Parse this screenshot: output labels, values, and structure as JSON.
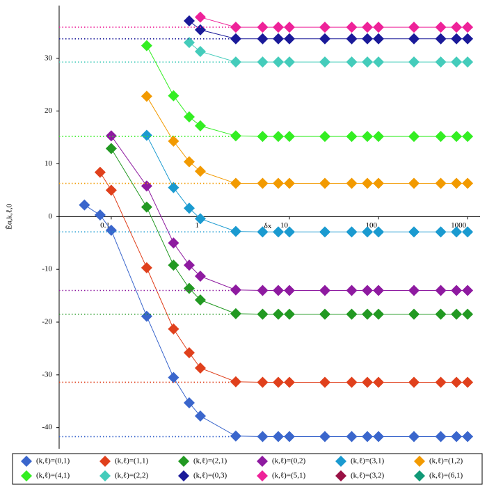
{
  "chart_data": {
    "type": "line",
    "x_label": "δx",
    "y_label": "Ẽα,k,ℓ,0",
    "log_x": true,
    "x": [
      0.05,
      0.075,
      0.1,
      0.25,
      0.5,
      0.75,
      1,
      2.5,
      5,
      7.5,
      10,
      25,
      50,
      75,
      100,
      250,
      500,
      750,
      1000
    ],
    "xlim": [
      0.026,
      1380
    ],
    "xticks": [
      0.1,
      1,
      10,
      100,
      1000
    ],
    "ylim": [
      -44,
      40
    ],
    "yticks": [
      -40,
      -30,
      -20,
      -10,
      0,
      10,
      20,
      30
    ],
    "series": [
      {
        "name": "(k,ℓ)=(0,1)",
        "color": "#3a66cc",
        "values": [
          2.2,
          0.3,
          -2.6,
          -18.9,
          -30.5,
          -35.3,
          -37.8,
          -41.6,
          -41.7,
          -41.7,
          -41.7,
          -41.7,
          -41.7,
          -41.7,
          -41.7,
          -41.7,
          -41.7,
          -41.7,
          -41.7
        ]
      },
      {
        "name": "(k,ℓ)=(1,1)",
        "color": "#e0401c",
        "values": [
          null,
          8.4,
          5.0,
          -9.7,
          -21.3,
          -25.8,
          -28.7,
          -31.3,
          -31.4,
          -31.4,
          -31.4,
          -31.4,
          -31.4,
          -31.4,
          -31.4,
          -31.4,
          -31.4,
          -31.4,
          -31.4
        ]
      },
      {
        "name": "(k,ℓ)=(2,1)",
        "color": "#229922",
        "values": [
          null,
          null,
          12.9,
          1.8,
          -9.2,
          -13.6,
          -15.8,
          -18.4,
          -18.5,
          -18.5,
          -18.5,
          -18.5,
          -18.5,
          -18.5,
          -18.5,
          -18.5,
          -18.5,
          -18.5,
          -18.5
        ]
      },
      {
        "name": "(k,ℓ)=(0,2)",
        "color": "#8e1aa0",
        "values": [
          null,
          null,
          15.3,
          5.8,
          -5.0,
          -9.2,
          -11.3,
          -13.9,
          -14.0,
          -14.0,
          -14.0,
          -14.0,
          -14.0,
          -14.0,
          -14.0,
          -14.0,
          -14.0,
          -14.0,
          -14.0
        ]
      },
      {
        "name": "(k,ℓ)=(3,1)",
        "color": "#1a9ad0",
        "values": [
          null,
          null,
          null,
          15.4,
          5.5,
          1.6,
          -0.4,
          -2.8,
          -2.9,
          -2.9,
          -2.9,
          -2.9,
          -2.9,
          -2.9,
          -2.9,
          -2.9,
          -2.9,
          -2.9,
          -2.9
        ]
      },
      {
        "name": "(k,ℓ)=(1,2)",
        "color": "#f29a00",
        "values": [
          null,
          null,
          null,
          22.8,
          14.3,
          10.4,
          8.6,
          6.3,
          6.3,
          6.3,
          6.3,
          6.3,
          6.3,
          6.3,
          6.3,
          6.3,
          6.3,
          6.3,
          6.3
        ]
      },
      {
        "name": "(k,ℓ)=(4,1)",
        "color": "#33ee22",
        "values": [
          null,
          null,
          null,
          32.4,
          22.9,
          18.9,
          17.2,
          15.3,
          15.2,
          15.2,
          15.2,
          15.2,
          15.2,
          15.2,
          15.2,
          15.2,
          15.2,
          15.2,
          15.2
        ]
      },
      {
        "name": "(k,ℓ)=(2,2)",
        "color": "#44ccbb",
        "values": [
          null,
          null,
          null,
          null,
          null,
          33.0,
          31.3,
          29.3,
          29.3,
          29.3,
          29.3,
          29.3,
          29.3,
          29.3,
          29.3,
          29.3,
          29.3,
          29.3,
          29.3
        ]
      },
      {
        "name": "(k,ℓ)=(0,3)",
        "color": "#1a1a99",
        "values": [
          null,
          null,
          null,
          null,
          null,
          37.1,
          35.4,
          33.7,
          33.7,
          33.7,
          33.7,
          33.7,
          33.7,
          33.7,
          33.7,
          33.7,
          33.7,
          33.7,
          33.7
        ]
      },
      {
        "name": "(k,ℓ)=(5,1)",
        "color": "#ee2299",
        "values": [
          null,
          null,
          null,
          null,
          null,
          null,
          37.8,
          35.9,
          35.9,
          35.9,
          35.9,
          35.9,
          35.9,
          35.9,
          35.9,
          35.9,
          35.9,
          35.9,
          35.9
        ]
      },
      {
        "name": "(k,ℓ)=(3,2)",
        "color": "#991144",
        "values": [
          null,
          null,
          null,
          null,
          null,
          null,
          null,
          null,
          null,
          null,
          null,
          null,
          null,
          null,
          null,
          null,
          null,
          null,
          null
        ]
      },
      {
        "name": "(k,ℓ)=(6,1)",
        "color": "#119977",
        "values": [
          null,
          null,
          null,
          null,
          null,
          null,
          null,
          null,
          null,
          null,
          null,
          null,
          null,
          null,
          null,
          null,
          null,
          null,
          null
        ]
      }
    ]
  }
}
